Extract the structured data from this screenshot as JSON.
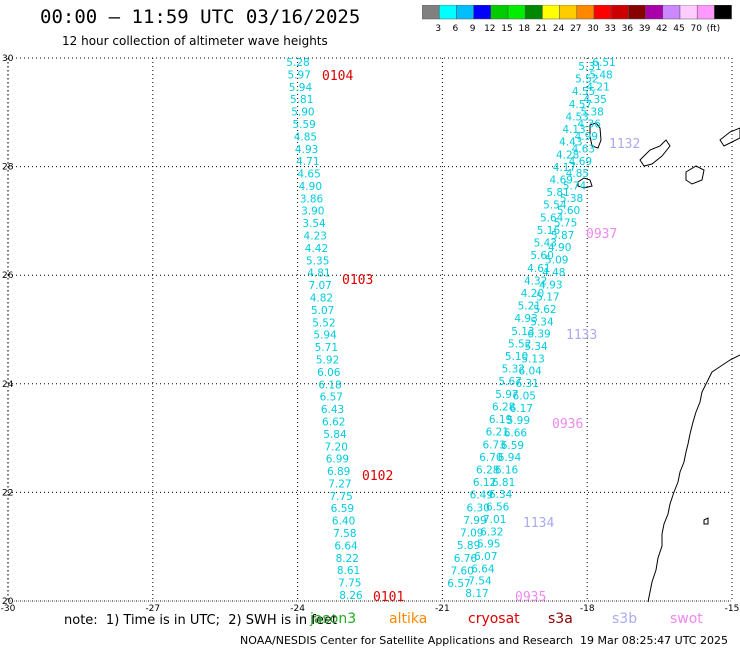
{
  "header": {
    "title": "00:00 – 11:59 UTC 03/16/2025",
    "subtitle": "12 hour collection of altimeter wave heights"
  },
  "colorbar": {
    "colors": [
      "#808080",
      "#00ffff",
      "#00bfff",
      "#0000ff",
      "#00cc00",
      "#00ee00",
      "#008800",
      "#ffff00",
      "#ffcc00",
      "#ff8800",
      "#ff0000",
      "#cc0000",
      "#880000",
      "#aa00aa",
      "#cc88ff",
      "#ffccff",
      "#ff99ff",
      "#000000"
    ],
    "labels": [
      "3",
      "6",
      "9",
      "12",
      "15",
      "18",
      "21",
      "24",
      "27",
      "30",
      "33",
      "36",
      "39",
      "42",
      "45",
      "70",
      "(ft)"
    ]
  },
  "axes": {
    "lon_ticks": [
      "-30",
      "-27",
      "-24",
      "-21",
      "-18",
      "-15"
    ],
    "lat_ticks": [
      "30",
      "28",
      "26",
      "24",
      "22",
      "20"
    ]
  },
  "passes": {
    "track_a_values": [
      "5.28",
      "5.97",
      "5.94",
      "5.81",
      "5.90",
      "5.59",
      "4.85",
      "4.93",
      "4.71",
      "4.65",
      "4.90",
      "3.86",
      "3.90",
      "3.54",
      "4.23",
      "4.42",
      "5.35",
      "4.81",
      "7.07",
      "4.82",
      "5.07",
      "5.52",
      "5.94",
      "5.71",
      "5.92",
      "6.06",
      "6.18",
      "6.57",
      "6.43",
      "6.62",
      "5.84",
      "7.20",
      "6.99",
      "6.89",
      "7.27",
      "7.75",
      "6.59",
      "6.40",
      "7.58",
      "6.64",
      "8.22",
      "8.61",
      "7.75",
      "8.26"
    ],
    "track_b_values": [
      "6.51",
      "5.48",
      "4.21",
      "4.35",
      "5.38",
      "4.36",
      "4.99",
      "4.63",
      "4.69",
      "4.85",
      "5.74",
      "5.38",
      "5.60",
      "5.75",
      "5.87",
      "4.90",
      "5.09",
      "4.48",
      "4.93",
      "5.17",
      "5.62",
      "5.34",
      "6.39",
      "5.34",
      "5.13",
      "6.04",
      "6.31",
      "6.05",
      "6.17",
      "5.99",
      "6.66",
      "6.59",
      "6.94",
      "6.16",
      "6.81",
      "6.34",
      "6.56",
      "7.01",
      "6.32",
      "5.95",
      "6.07",
      "6.64",
      "7.54",
      "8.17"
    ],
    "track_c_values": [
      "5.31",
      "5.52",
      "4.55",
      "4.57",
      "4.53",
      "4.13",
      "4.43",
      "4.28",
      "4.17",
      "4.69",
      "5.81",
      "5.54",
      "5.64",
      "5.16",
      "5.43",
      "5.60",
      "4.61",
      "4.32",
      "4.20",
      "5.21",
      "4.93",
      "5.13",
      "5.52",
      "5.10",
      "5.32",
      "5.67",
      "5.97",
      "6.28",
      "6.19",
      "6.21",
      "6.73",
      "6.70",
      "6.28",
      "6.12",
      "6.49",
      "6.30",
      "7.99",
      "7.09",
      "5.89",
      "6.76",
      "7.60",
      "6.57"
    ],
    "time_labels": [
      {
        "text": "0104",
        "color": "#dd0000"
      },
      {
        "text": "0103",
        "color": "#dd0000"
      },
      {
        "text": "0102",
        "color": "#dd0000"
      },
      {
        "text": "0101",
        "color": "#dd0000"
      },
      {
        "text": "1132",
        "color": "#aaaaee"
      },
      {
        "text": "0937",
        "color": "#ee88ee"
      },
      {
        "text": "1133",
        "color": "#aaaaee"
      },
      {
        "text": "0936",
        "color": "#ee88ee"
      },
      {
        "text": "1134",
        "color": "#aaaaee"
      },
      {
        "text": "0935",
        "color": "#ee88ee"
      }
    ]
  },
  "footer": {
    "note": "note:  1) Time is in UTC;  2) SWH is in feet",
    "credit": "NOAA/NESDIS Center for Satellite Applications and Research",
    "timestamp": "19 Mar 08:25:47 UTC 2025"
  },
  "legend": [
    {
      "name": "jason3",
      "color": "#22aa22"
    },
    {
      "name": "altika",
      "color": "#ff8800"
    },
    {
      "name": "cryosat",
      "color": "#dd0000"
    },
    {
      "name": "s3a",
      "color": "#880000"
    },
    {
      "name": "s3b",
      "color": "#aaaaee"
    },
    {
      "name": "swot",
      "color": "#ee88ee"
    }
  ],
  "colors": {
    "wave_text": "#00ccdd",
    "grid": "#000000",
    "coast": "#000000"
  }
}
